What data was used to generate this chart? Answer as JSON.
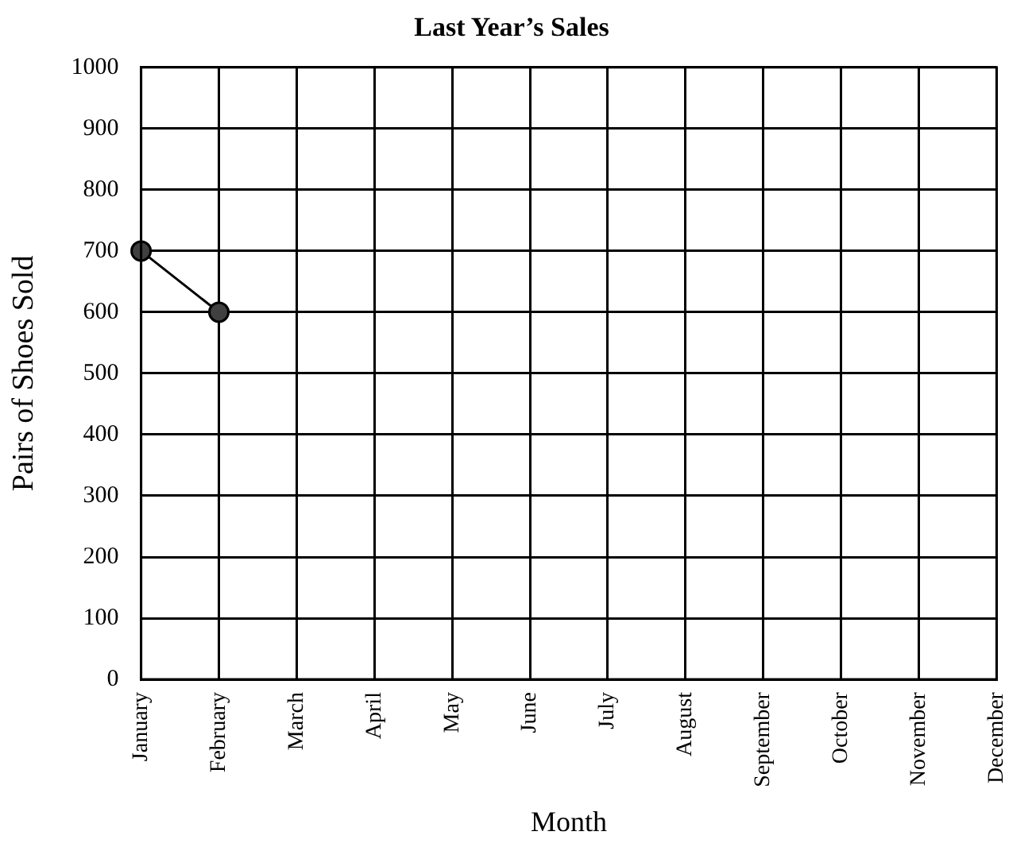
{
  "chart_data": {
    "type": "line",
    "title": "Last Year’s Sales",
    "xlabel": "Month",
    "ylabel": "Pairs of Shoes Sold",
    "categories": [
      "January",
      "February",
      "March",
      "April",
      "May",
      "June",
      "July",
      "August",
      "September",
      "October",
      "November",
      "December"
    ],
    "series": [
      {
        "color": "#000000",
        "values": [
          700,
          600,
          null,
          null,
          null,
          null,
          null,
          null,
          null,
          null,
          null,
          null
        ]
      }
    ],
    "ylim": [
      0,
      1000
    ],
    "yticks": [
      0,
      100,
      200,
      300,
      400,
      500,
      600,
      700,
      800,
      900,
      1000
    ],
    "grid": true,
    "legend": false,
    "marker": "circle",
    "line_style": "solid"
  }
}
